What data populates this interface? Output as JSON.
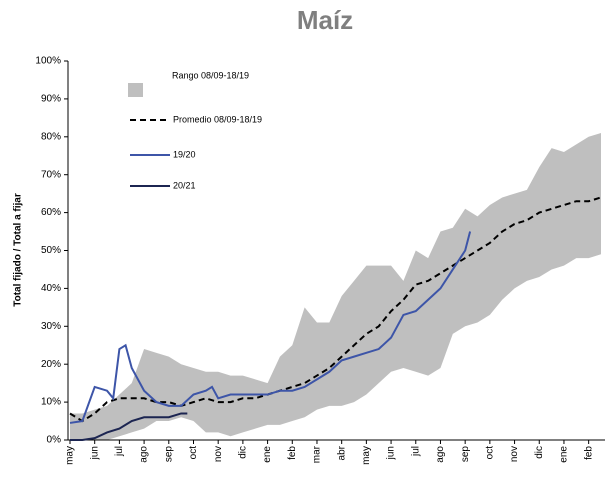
{
  "chart_data": {
    "type": "line",
    "title": "Maíz",
    "ylabel": "Total fijado / Total a fijar",
    "xlim": [
      0,
      21.5
    ],
    "xticks": [
      {
        "value": 0,
        "label": "may"
      },
      {
        "value": 1,
        "label": "jun"
      },
      {
        "value": 2,
        "label": "jul"
      },
      {
        "value": 3,
        "label": "ago"
      },
      {
        "value": 4,
        "label": "sep"
      },
      {
        "value": 5,
        "label": "oct"
      },
      {
        "value": 6,
        "label": "nov"
      },
      {
        "value": 7,
        "label": "dic"
      },
      {
        "value": 8,
        "label": "ene"
      },
      {
        "value": 9,
        "label": "feb"
      },
      {
        "value": 10,
        "label": "mar"
      },
      {
        "value": 11,
        "label": "abr"
      },
      {
        "value": 12,
        "label": "may"
      },
      {
        "value": 13,
        "label": "jun"
      },
      {
        "value": 14,
        "label": "jul"
      },
      {
        "value": 15,
        "label": "ago"
      },
      {
        "value": 16,
        "label": "sep"
      },
      {
        "value": 17,
        "label": "oct"
      },
      {
        "value": 18,
        "label": "nov"
      },
      {
        "value": 19,
        "label": "dic"
      },
      {
        "value": 20,
        "label": "ene"
      },
      {
        "value": 21,
        "label": "feb"
      }
    ],
    "ylim": [
      0,
      100
    ],
    "yticks": [
      {
        "value": 0,
        "label": "0%"
      },
      {
        "value": 10,
        "label": "10%"
      },
      {
        "value": 20,
        "label": "20%"
      },
      {
        "value": 30,
        "label": "30%"
      },
      {
        "value": 40,
        "label": "40%"
      },
      {
        "value": 50,
        "label": "50%"
      },
      {
        "value": 60,
        "label": "60%"
      },
      {
        "value": 70,
        "label": "70%"
      },
      {
        "value": 80,
        "label": "80%"
      },
      {
        "value": 90,
        "label": "90%"
      },
      {
        "value": 100,
        "label": "100%"
      }
    ],
    "band": {
      "name": "Rango 08/09-18/19",
      "color": "#bfbfbf",
      "x": [
        0,
        0.5,
        1,
        1.5,
        2,
        2.5,
        3,
        3.5,
        4,
        4.5,
        5,
        5.5,
        6,
        6.5,
        7,
        7.5,
        8,
        8.5,
        9,
        9.5,
        10,
        10.5,
        11,
        11.5,
        12,
        12.5,
        13,
        13.5,
        14,
        14.5,
        15,
        15.5,
        16,
        16.5,
        17,
        17.5,
        18,
        18.5,
        19,
        19.5,
        20,
        20.5,
        21,
        21.5
      ],
      "high": [
        7,
        7,
        8,
        9,
        12,
        15,
        24,
        23,
        22,
        20,
        19,
        18,
        18,
        17,
        17,
        16,
        15,
        22,
        25,
        35,
        31,
        31,
        38,
        42,
        46,
        46,
        46,
        42,
        50,
        48,
        55,
        56,
        61,
        59,
        62,
        64,
        65,
        66,
        72,
        77,
        76,
        78,
        80,
        81
      ],
      "low": [
        0,
        0,
        0,
        0,
        1,
        2,
        3,
        5,
        5,
        6,
        5,
        2,
        2,
        1,
        2,
        3,
        4,
        4,
        5,
        6,
        8,
        9,
        9,
        10,
        12,
        15,
        18,
        19,
        18,
        17,
        19,
        28,
        30,
        31,
        33,
        37,
        40,
        42,
        43,
        45,
        46,
        48,
        48,
        49
      ]
    },
    "series": [
      {
        "name": "Promedio 08/09-18/19",
        "color": "#000000",
        "dashed": true,
        "x": [
          0,
          0.5,
          1,
          1.5,
          2,
          2.5,
          3,
          3.5,
          4,
          4.5,
          5,
          5.5,
          6,
          6.5,
          7,
          7.5,
          8,
          8.5,
          9,
          9.5,
          10,
          10.5,
          11,
          11.5,
          12,
          12.5,
          13,
          13.5,
          14,
          14.5,
          15,
          15.5,
          16,
          16.5,
          17,
          17.5,
          18,
          18.5,
          19,
          19.5,
          20,
          20.5,
          21,
          21.5
        ],
        "values": [
          7,
          5,
          7,
          10,
          11,
          11,
          11,
          10,
          10,
          9,
          10,
          11,
          10,
          10,
          11,
          11,
          12,
          13,
          14,
          15,
          17,
          19,
          22,
          25,
          28,
          30,
          34,
          37,
          41,
          42,
          44,
          46,
          48,
          50,
          52,
          55,
          57,
          58,
          60,
          61,
          62,
          63,
          63,
          64
        ]
      },
      {
        "name": "19/20",
        "color": "#3d55a8",
        "dashed": false,
        "x": [
          0,
          0.5,
          1,
          1.25,
          1.5,
          1.75,
          2,
          2.25,
          2.5,
          3,
          3.5,
          4,
          4.5,
          5,
          5.5,
          5.75,
          6,
          6.5,
          7,
          7.5,
          8,
          8.5,
          9,
          9.5,
          10,
          10.5,
          11,
          11.5,
          12,
          12.5,
          13,
          13.5,
          14,
          14.5,
          15,
          15.5,
          16,
          16.2
        ],
        "values": [
          4.5,
          5,
          14,
          13.5,
          13,
          11,
          24,
          25,
          19,
          13,
          10,
          9,
          9,
          12,
          13,
          14,
          11,
          12,
          12,
          12,
          12,
          13,
          13,
          14,
          16,
          18,
          21,
          22,
          23,
          24,
          27,
          33,
          34,
          37,
          40,
          45,
          50,
          55
        ]
      },
      {
        "name": "20/21",
        "color": "#1c2551",
        "dashed": false,
        "x": [
          0,
          0.5,
          1,
          1.5,
          2,
          2.5,
          3,
          3.5,
          4,
          4.5,
          4.75
        ],
        "values": [
          0,
          0,
          0.5,
          2,
          3,
          5,
          6,
          6,
          6,
          7,
          7
        ]
      }
    ]
  }
}
